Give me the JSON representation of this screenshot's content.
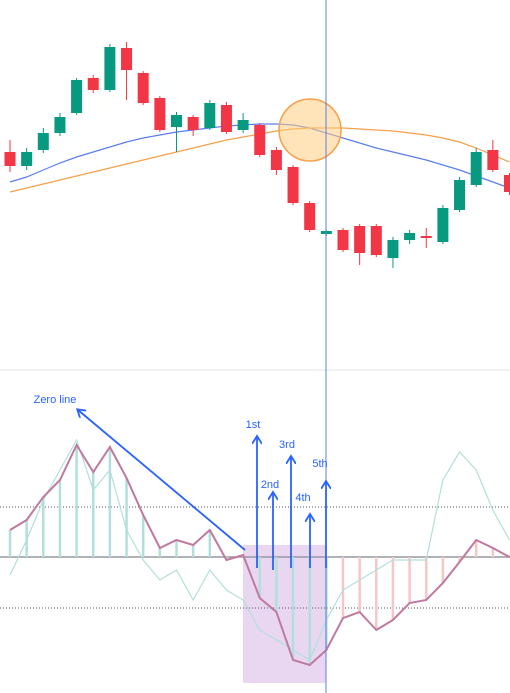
{
  "chart_data": [
    {
      "type": "candlestick",
      "open": [
        218,
        204,
        220,
        237,
        257,
        292,
        280,
        322,
        297,
        272,
        243,
        253,
        242,
        265,
        240,
        245,
        220,
        203,
        167,
        136,
        140,
        144,
        144,
        112,
        130,
        134,
        128,
        160,
        185,
        220,
        195
      ],
      "high": [
        230,
        222,
        242,
        257,
        292,
        295,
        326,
        328,
        299,
        274,
        258,
        255,
        270,
        268,
        257,
        247,
        223,
        205,
        169,
        140,
        142,
        146,
        146,
        133,
        140,
        142,
        165,
        193,
        222,
        230,
        197
      ],
      "low": [
        198,
        200,
        217,
        234,
        255,
        277,
        278,
        270,
        265,
        238,
        218,
        234,
        240,
        236,
        237,
        213,
        195,
        165,
        138,
        134,
        118,
        105,
        113,
        102,
        126,
        122,
        126,
        158,
        183,
        198,
        175
      ],
      "close": [
        204,
        218,
        237,
        253,
        290,
        280,
        323,
        300,
        267,
        240,
        255,
        240,
        267,
        238,
        250,
        215,
        200,
        167,
        140,
        139,
        120,
        117,
        115,
        130,
        137,
        132,
        162,
        190,
        218,
        200,
        178
      ],
      "up_color": "#089981",
      "down_color": "#f23645",
      "series": [
        {
          "color": "#5b7ef0",
          "values": [
            188,
            193,
            200,
            207,
            213,
            218,
            223,
            228,
            232,
            235,
            238,
            240,
            242,
            244,
            245,
            246,
            246,
            245,
            242,
            237,
            232,
            227,
            222,
            218,
            214,
            210,
            205,
            200,
            194,
            188,
            182
          ]
        },
        {
          "color": "#f5a04a",
          "values": [
            178,
            182,
            186,
            190,
            194,
            198,
            202,
            206,
            210,
            214,
            218,
            222,
            226,
            230,
            233,
            236,
            239,
            241,
            242,
            242,
            242,
            241,
            240,
            239,
            237,
            235,
            232,
            228,
            222,
            215,
            208
          ]
        }
      ],
      "ylim": [
        0,
        370
      ]
    },
    {
      "type": "oscillator",
      "series": [
        {
          "color": "#b2dfdb",
          "values": [
            -18,
            17,
            57,
            87,
            117,
            67,
            87,
            27,
            -3,
            -23,
            -13,
            -43,
            -13,
            -33,
            -43,
            -73,
            -83,
            -93,
            -103,
            -63,
            -33,
            -23,
            -13,
            -3,
            -3,
            -3,
            77,
            105,
            87,
            47,
            17
          ]
        },
        {
          "color": "#c0799f",
          "values": [
            27,
            37,
            60,
            77,
            112,
            85,
            110,
            79,
            42,
            9,
            17,
            12,
            27,
            -3,
            2,
            -41,
            -55,
            -103,
            -108,
            -93,
            -61,
            -55,
            -73,
            -63,
            -46,
            -43,
            -26,
            -5,
            17,
            9,
            0
          ],
          "bar_colors": [
            "#b2dfdb",
            "#b2dfdb",
            "#b2dfdb",
            "#b2dfdb",
            "#b2dfdb",
            "#b2dfdb",
            "#b2dfdb",
            "#b2dfdb",
            "#b2dfdb",
            "#b2dfdb",
            "#b2dfdb",
            "#b2dfdb",
            "#b2dfdb",
            "#b2dfdb",
            "#b2dfdb",
            "#b2dfdb",
            "#b2dfdb",
            "#b2dfdb",
            "#b2dfdb",
            "#b2dfdb",
            "#f7c6c6",
            "#f7c6c6",
            "#f7c6c6",
            "#f7c6c6",
            "#f7c6c6",
            "#f7c6c6",
            "#f7c6c6",
            "#f7c6c6",
            "#f7c6c6",
            "#f7c6c6",
            "#f7c6c6"
          ]
        }
      ],
      "hlines": [
        50,
        0,
        -51
      ],
      "ylim": [
        -136,
        187
      ],
      "annotations": [
        "Zero line",
        "1st",
        "2nd",
        "3rd",
        "4th",
        "5th"
      ]
    }
  ]
}
